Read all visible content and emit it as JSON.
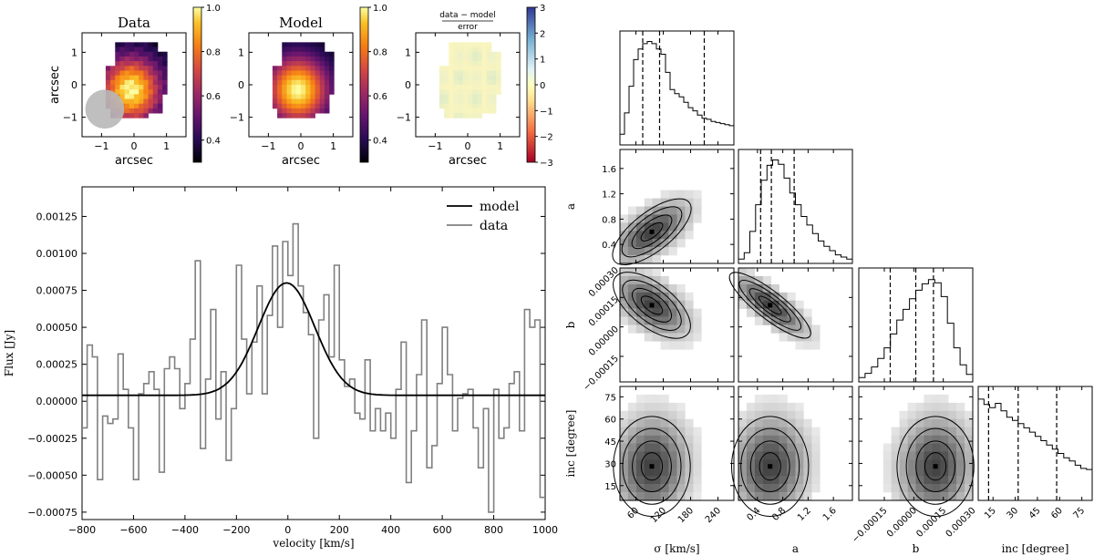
{
  "chart_data": [
    {
      "id": "map-data",
      "type": "heatmap",
      "title": "Data",
      "xlabel": "arcsec",
      "ylabel": "arcsec",
      "xlim": [
        -1.6,
        1.6
      ],
      "ylim": [
        -1.6,
        1.6
      ],
      "xticks": [
        -1,
        0,
        1
      ],
      "yticks": [
        -1,
        0,
        1
      ],
      "colormap": "inferno",
      "colorbar": {
        "range": [
          0.3,
          1.0
        ],
        "ticks": [
          "0.4",
          "0.6",
          "0.8",
          "1.0"
        ]
      },
      "beam": {
        "center": [
          -0.9,
          -0.75
        ],
        "axes": [
          0.6,
          0.6
        ]
      }
    },
    {
      "id": "map-model",
      "type": "heatmap",
      "title": "Model",
      "xlabel": "arcsec",
      "ylabel": "",
      "xlim": [
        -1.6,
        1.6
      ],
      "ylim": [
        -1.6,
        1.6
      ],
      "xticks": [
        -1,
        0,
        1
      ],
      "yticks": [
        -1,
        0,
        1
      ],
      "colormap": "inferno",
      "colorbar": {
        "range": [
          0.3,
          1.0
        ],
        "ticks": [
          "0.4",
          "0.6",
          "0.8",
          "1.0"
        ]
      }
    },
    {
      "id": "map-residual",
      "type": "heatmap",
      "title_numerator": "data − model",
      "title_denominator": "error",
      "xlabel": "arcsec",
      "xlim": [
        -1.6,
        1.6
      ],
      "ylim": [
        -1.6,
        1.6
      ],
      "xticks": [
        -1,
        0,
        1
      ],
      "yticks": [
        -1,
        0,
        1
      ],
      "colormap": "RdYlBu",
      "colorbar": {
        "range": [
          -3,
          3
        ],
        "ticks": [
          "3",
          "2",
          "1",
          "0",
          "−1",
          "−2",
          "−3"
        ]
      }
    },
    {
      "id": "spectrum",
      "type": "line",
      "xlabel": "velocity [km/s]",
      "ylabel": "Flux [Jy]",
      "xlim": [
        -800,
        1000
      ],
      "ylim": [
        -0.0008,
        0.00145
      ],
      "xticks": [
        -800,
        -600,
        -400,
        -200,
        0,
        200,
        400,
        600,
        800,
        1000
      ],
      "xtick_labels": [
        "−800",
        "−600",
        "−400",
        "−200",
        "0",
        "200",
        "400",
        "600",
        "800",
        "1000"
      ],
      "yticks": [
        -0.00075,
        -0.0005,
        -0.00025,
        0,
        0.00025,
        0.0005,
        0.00075,
        0.001,
        0.00125
      ],
      "ytick_labels": [
        "−0.00075",
        "−0.00050",
        "−0.00025",
        "0.00000",
        "0.00025",
        "0.00050",
        "0.00075",
        "0.00100",
        "0.00125"
      ],
      "legend": {
        "placement": "top-right",
        "entries": [
          "model",
          "data"
        ]
      },
      "series": [
        {
          "name": "model",
          "style": "smooth",
          "baseline": 4e-05,
          "peak": 0.0008,
          "center": -5,
          "sigma": 110
        },
        {
          "name": "data",
          "style": "step",
          "bin_width": 20,
          "x_start": -800,
          "values": [
            -0.00018,
            0.00038,
            0.0003,
            -0.00053,
            -0.0001,
            -0.00015,
            -0.00012,
            0.00032,
            8e-05,
            -0.00018,
            -0.00053,
            5e-05,
            0.00012,
            0.0002,
            8e-05,
            -0.00048,
            0.00022,
            0.0003,
            0.00022,
            -5e-05,
            0.00012,
            0.00042,
            0.00095,
            -0.00032,
            0.00015,
            0.00062,
            -0.00012,
            0.0002,
            -0.0004,
            -5e-05,
            0.00092,
            0.00042,
            5e-05,
            0.0004,
            0.00078,
            5e-05,
            0.00058,
            0.00105,
            0.0005,
            0.00108,
            0.00085,
            0.0012,
            0.00078,
            0.0006,
            0.00045,
            -0.00025,
            0.00055,
            0.00072,
            0.0003,
            0.00092,
            0.00028,
            0.0001,
            0.00015,
            -8e-05,
            -0.00012,
            0.00028,
            -0.0002,
            -5e-05,
            -0.0002,
            -8e-05,
            -0.00025,
            8e-05,
            0.0004,
            -0.00055,
            -0.0002,
            0.00018,
            0.00055,
            -0.00045,
            -0.0003,
            0.00012,
            0.0005,
            0.00018,
            -0.0002,
            2e-05,
            5e-05,
            8e-05,
            -0.00018,
            -0.00045,
            -5e-05,
            -0.00075,
            8e-05,
            -0.00025,
            -0.00018,
            0.00012,
            0.0002,
            -0.0002,
            0.00062,
            0.0005,
            0.00055,
            -0.00065
          ]
        }
      ]
    },
    {
      "id": "corner",
      "type": "scatter",
      "variant": "corner-plot",
      "parameters": [
        {
          "name": "sigma",
          "label": "σ [km/s]",
          "range": [
            25,
            275
          ],
          "ticks": [
            60,
            120,
            180,
            240
          ],
          "tick_labels": [
            "60",
            "120",
            "180",
            "240"
          ],
          "quantiles": [
            75,
            112,
            210
          ],
          "hist": [
            0.1,
            0.3,
            0.55,
            0.8,
            0.9,
            0.95,
            0.97,
            0.95,
            0.9,
            0.85,
            0.68,
            0.52,
            0.48,
            0.45,
            0.4,
            0.35,
            0.32,
            0.28,
            0.25,
            0.24,
            0.22,
            0.21,
            0.2,
            0.19,
            0.18
          ]
        },
        {
          "name": "a",
          "label": "a",
          "range": [
            0.1,
            1.9
          ],
          "ticks": [
            0.4,
            0.8,
            1.2,
            1.6
          ],
          "tick_labels": [
            "0.4",
            "0.8",
            "1.2",
            "1.6"
          ],
          "quantiles": [
            0.45,
            0.62,
            0.98
          ],
          "hist": [
            0.04,
            0.1,
            0.3,
            0.55,
            0.78,
            0.92,
            0.97,
            0.93,
            0.8,
            0.66,
            0.55,
            0.44,
            0.36,
            0.28,
            0.21,
            0.16,
            0.12,
            0.08,
            0.06,
            0.04
          ]
        },
        {
          "name": "b",
          "label": "b",
          "range": [
            -0.00028,
            0.0003
          ],
          "ticks": [
            -0.00015,
            0.0,
            0.00015,
            0.0003
          ],
          "tick_labels": [
            "−0.00015",
            "0.00000",
            "0.00015",
            "0.00030"
          ],
          "quantiles": [
            -0.00012,
            1e-05,
            0.0001
          ],
          "hist": [
            0.04,
            0.08,
            0.14,
            0.22,
            0.32,
            0.45,
            0.58,
            0.68,
            0.78,
            0.86,
            0.92,
            0.96,
            0.93,
            0.8,
            0.55,
            0.32,
            0.16,
            0.07
          ]
        },
        {
          "name": "inc",
          "label": "inc [degree]",
          "range": [
            5,
            82
          ],
          "ticks": [
            15,
            30,
            45,
            60,
            75
          ],
          "tick_labels": [
            "15",
            "30",
            "45",
            "60",
            "75"
          ],
          "quantiles": [
            12,
            32,
            58
          ],
          "hist": [
            0.95,
            0.9,
            0.87,
            0.91,
            0.84,
            0.78,
            0.75,
            0.72,
            0.68,
            0.64,
            0.6,
            0.56,
            0.52,
            0.48,
            0.44,
            0.4,
            0.37,
            0.33,
            0.3,
            0.29
          ]
        }
      ],
      "y_axis_labels": [
        "a",
        "b",
        "inc [degree]"
      ],
      "a_ticks": [
        "0.4",
        "0.8",
        "1.2",
        "1.6"
      ],
      "b_ticks": [
        "−0.00015",
        "0.00000",
        "0.00015",
        "0.00030"
      ],
      "inc_ticks": [
        "15",
        "30",
        "45",
        "60",
        "75"
      ],
      "posterior_peaks": {
        "sigma": 95,
        "a": 0.6,
        "b": 0.00011,
        "inc": 28
      }
    }
  ]
}
